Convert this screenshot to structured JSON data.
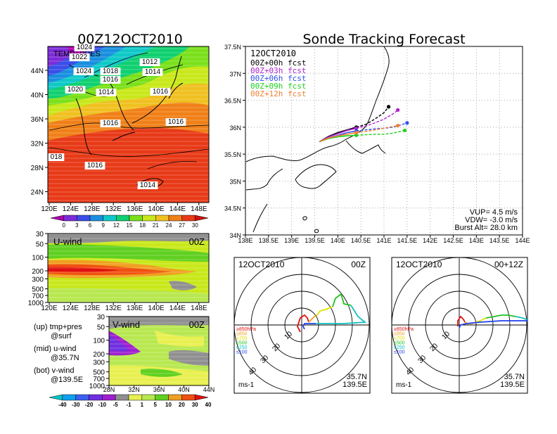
{
  "panels": {
    "temp_map": {
      "title": "00Z12OCT2010",
      "inner_label": "TEMP+PRES",
      "x_ticks": [
        "120E",
        "124E",
        "128E",
        "132E",
        "136E",
        "140E",
        "144E",
        "148E"
      ],
      "y_ticks": [
        "44N",
        "40N",
        "36N",
        "32N",
        "28N",
        "24N"
      ],
      "isobar_labels": [
        "1024",
        "1022",
        "1024",
        "1018",
        "1016",
        "1012",
        "1014",
        "1020",
        "1014",
        "1016",
        "1016",
        "1016",
        "018",
        "1016",
        "1014"
      ],
      "colorbar_labels": [
        "0",
        "3",
        "6",
        "9",
        "12",
        "15",
        "18",
        "21",
        "24",
        "27",
        "30"
      ],
      "colorbar_colors": [
        "#b000b0",
        "#7d2bd8",
        "#3a4ee8",
        "#1a8fe0",
        "#10c8c8",
        "#10d070",
        "#7ae01a",
        "#c8e81a",
        "#f0c020",
        "#f08018",
        "#e83a18",
        "#d01010"
      ]
    },
    "u_wind": {
      "label": "U-wind",
      "time": "00Z",
      "y_ticks": [
        "30",
        "50",
        "100",
        "200",
        "300",
        "500",
        "700",
        "1000"
      ],
      "x_ticks": [
        "120E",
        "124E",
        "128E",
        "132E",
        "136E",
        "140E",
        "144E",
        "148E"
      ]
    },
    "v_wind": {
      "label": "V-wind",
      "time": "00Z",
      "y_ticks": [
        "30",
        "50",
        "100",
        "200",
        "300",
        "500",
        "700",
        "1000"
      ],
      "x_ticks": [
        "28N",
        "32N",
        "36N",
        "40N",
        "44N"
      ],
      "colorbar_labels": [
        "-40",
        "-30",
        "-20",
        "-10",
        "-5",
        "-1",
        "1",
        "5",
        "10",
        "20",
        "30",
        "40"
      ],
      "colorbar_colors": [
        "#00c8c8",
        "#10a0f0",
        "#3a60f0",
        "#7030e0",
        "#a020d0",
        "#909090",
        "#e8f050",
        "#b8e850",
        "#60d020",
        "#f0a020",
        "#f05010",
        "#e01010"
      ]
    },
    "legend_notes": [
      {
        "line1": "(up) tmp+pres",
        "line2": "@surf"
      },
      {
        "line1": "(mid) u-wind",
        "line2": "@35.7N"
      },
      {
        "line1": "(bot) v-wind",
        "line2": "@139.5E"
      }
    ],
    "track": {
      "title": "Sonde Tracking Forecast",
      "date": "12OCT2010",
      "x_ticks": [
        "138E",
        "138.5E",
        "139E",
        "139.5E",
        "140E",
        "140.5E",
        "141E",
        "141.5E",
        "142E",
        "142.5E",
        "143E",
        "143.5E",
        "144E"
      ],
      "y_ticks": [
        "37.5N",
        "37N",
        "36.5N",
        "36N",
        "35.5N",
        "35N",
        "34.5N",
        "34N"
      ],
      "vup": "VUP= 4.5 m/s",
      "vdw": "VDW= -3.0 m/s",
      "burst": "Burst Alt= 28.0 km"
    },
    "hodo_left": {
      "date": "12OCT2010",
      "time": "00Z",
      "lat": "35.7N",
      "lon": "139.5E",
      "units": "ms-1"
    },
    "hodo_right": {
      "date": "12OCT2010",
      "time": "00+12Z",
      "lat": "35.7N",
      "lon": "139.5E",
      "units": "ms-1"
    },
    "hodo_ring_labels": [
      "10",
      "20",
      "30",
      "40"
    ],
    "hodo_levels": [
      {
        "label": "≥850hPa",
        "color": "#e01010"
      },
      {
        "label": "≤850",
        "color": "#f0a020"
      },
      {
        "label": "≤700",
        "color": "#e0e000"
      },
      {
        "label": "≤500",
        "color": "#20c020"
      },
      {
        "label": "≤250",
        "color": "#10c0c0"
      },
      {
        "label": "≤100",
        "color": "#2040f0"
      }
    ]
  },
  "chart_data": [
    {
      "type": "line",
      "title": "Sonde Tracking Forecast",
      "xlabel": "",
      "ylabel": "",
      "xlim": [
        138,
        144
      ],
      "ylim": [
        34,
        37.5
      ],
      "series": [
        {
          "name": "00Z+00h fcst",
          "color": "#000000",
          "x": [
            139.6,
            139.8,
            140.0,
            140.2,
            140.4,
            140.6,
            140.8,
            141.0,
            141.1
          ],
          "y": [
            35.73,
            35.83,
            35.9,
            35.95,
            36.0,
            36.05,
            36.15,
            36.27,
            36.38
          ]
        },
        {
          "name": "00Z+03h fcst",
          "color": "#b020d0",
          "x": [
            139.6,
            139.8,
            140.0,
            140.2,
            140.4,
            140.6,
            140.8,
            141.0,
            141.2,
            141.3
          ],
          "y": [
            35.73,
            35.82,
            35.88,
            35.94,
            35.98,
            36.02,
            36.08,
            36.15,
            36.25,
            36.32
          ]
        },
        {
          "name": "00Z+06h fcst",
          "color": "#3050f0",
          "x": [
            139.6,
            139.8,
            140.0,
            140.2,
            140.4,
            140.6,
            140.8,
            141.0,
            141.2,
            141.5
          ],
          "y": [
            35.73,
            35.8,
            35.85,
            35.9,
            35.93,
            35.95,
            35.97,
            35.98,
            36.0,
            36.08
          ]
        },
        {
          "name": "00Z+09h fcst",
          "color": "#20d020",
          "x": [
            139.6,
            139.8,
            140.0,
            140.2,
            140.4,
            140.6,
            140.8,
            141.0,
            141.2,
            141.45
          ],
          "y": [
            35.73,
            35.79,
            35.82,
            35.84,
            35.85,
            35.86,
            35.87,
            35.87,
            35.89,
            35.94
          ]
        },
        {
          "name": "00Z+12h fcst",
          "color": "#f08030",
          "x": [
            139.6,
            139.8,
            140.0,
            140.2,
            140.4,
            140.6,
            140.8,
            141.0,
            141.3
          ],
          "y": [
            35.73,
            35.8,
            35.84,
            35.87,
            35.9,
            35.92,
            35.95,
            35.98,
            36.03
          ]
        }
      ]
    }
  ]
}
